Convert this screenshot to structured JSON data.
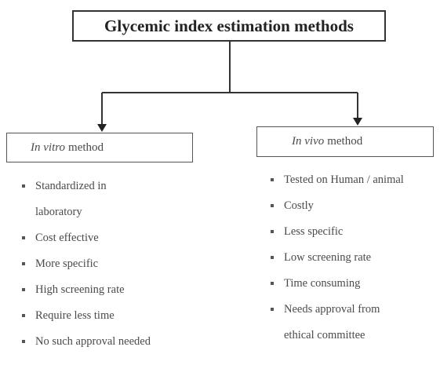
{
  "title": "Glycemic index estimation methods",
  "branches": [
    {
      "heading": {
        "italic": "In vitro",
        "text": "method"
      },
      "items": [
        "Standardized in laboratory",
        "Cost effective",
        "More specific",
        "High screening rate",
        "Require less time",
        "No such approval needed"
      ]
    },
    {
      "heading": {
        "italic": "In vivo",
        "text": "method"
      },
      "items": [
        "Tested on Human / animal",
        "Costly",
        "Less specific",
        "Low screening rate",
        "Time consuming",
        "Needs approval from ethical committee"
      ]
    }
  ]
}
